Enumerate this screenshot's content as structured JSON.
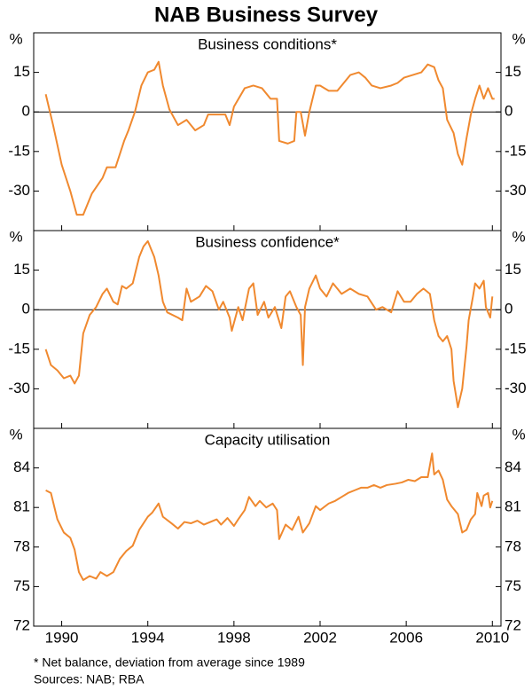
{
  "title": "NAB Business Survey",
  "notes": [
    "*      Net balance, deviation from average since 1989",
    "Sources: NAB; RBA"
  ],
  "chart_data": [
    {
      "type": "line",
      "title": "Business conditions*",
      "unit": "%",
      "xlim": [
        1988.7,
        2010.4
      ],
      "ylim": [
        -45,
        30
      ],
      "yticks": [
        -30,
        -15,
        0,
        15
      ],
      "zero_line": true,
      "x": [
        1989.26,
        1989.6,
        1990.0,
        1990.4,
        1990.7,
        1991.0,
        1991.4,
        1991.9,
        1992.1,
        1992.5,
        1992.9,
        1993.1,
        1993.4,
        1993.7,
        1994.0,
        1994.3,
        1994.5,
        1994.7,
        1995.0,
        1995.4,
        1995.8,
        1996.2,
        1996.6,
        1996.8,
        1997.2,
        1997.6,
        1997.8,
        1998.0,
        1998.5,
        1998.9,
        1999.3,
        1999.7,
        2000.0,
        2000.1,
        2000.5,
        2000.8,
        2000.9,
        2001.1,
        2001.3,
        2001.5,
        2001.8,
        2002.0,
        2002.4,
        2002.8,
        2003.0,
        2003.4,
        2003.8,
        2004.1,
        2004.4,
        2004.8,
        2005.3,
        2005.6,
        2005.9,
        2006.3,
        2006.7,
        2007.0,
        2007.3,
        2007.5,
        2007.7,
        2007.9,
        2008.2,
        2008.4,
        2008.6,
        2008.8,
        2009.0,
        2009.2,
        2009.4,
        2009.6,
        2009.8,
        2010.0,
        2010.1
      ],
      "series": [
        {
          "color": "#f0892f",
          "values": [
            6.7,
            -5,
            -20,
            -30,
            -39,
            -39,
            -31,
            -25,
            -21,
            -21,
            -11,
            -7,
            0,
            10,
            15,
            16,
            19,
            10,
            1,
            -5,
            -3,
            -7,
            -5,
            -1,
            -1,
            -1,
            -5,
            2,
            9,
            10,
            9,
            5,
            5,
            -11,
            -12,
            -11,
            0,
            0,
            -9,
            0,
            10,
            10,
            8,
            8,
            10,
            14,
            15,
            13,
            10,
            9,
            10,
            11,
            13,
            14,
            15,
            18,
            17,
            12,
            9,
            -3,
            -8,
            -16,
            -20,
            -10,
            -1,
            5,
            10,
            5,
            9,
            5,
            5
          ]
        }
      ]
    },
    {
      "type": "line",
      "title": "Business confidence*",
      "unit": "%",
      "xlim": [
        1988.7,
        2010.4
      ],
      "ylim": [
        -45,
        30
      ],
      "yticks": [
        -30,
        -15,
        0,
        15
      ],
      "zero_line": true,
      "x": [
        1989.26,
        1989.5,
        1989.8,
        1990.1,
        1990.4,
        1990.6,
        1990.8,
        1991.0,
        1991.3,
        1991.6,
        1991.9,
        1992.1,
        1992.4,
        1992.6,
        1992.8,
        1993.0,
        1993.3,
        1993.6,
        1993.8,
        1994.0,
        1994.3,
        1994.5,
        1994.7,
        1994.9,
        1995.4,
        1995.6,
        1995.8,
        1996.0,
        1996.4,
        1996.7,
        1997.0,
        1997.3,
        1997.5,
        1997.8,
        1997.9,
        1998.2,
        1998.4,
        1998.7,
        1998.9,
        1999.1,
        1999.4,
        1999.6,
        1999.9,
        2000.2,
        2000.4,
        2000.6,
        2000.9,
        2001.1,
        2001.2,
        2001.3,
        2001.5,
        2001.8,
        2002.0,
        2002.3,
        2002.6,
        2003.0,
        2003.4,
        2003.8,
        2004.2,
        2004.6,
        2004.9,
        2005.3,
        2005.6,
        2005.9,
        2006.2,
        2006.5,
        2006.8,
        2007.1,
        2007.3,
        2007.5,
        2007.7,
        2007.9,
        2008.1,
        2008.2,
        2008.4,
        2008.6,
        2008.8,
        2008.9,
        2009.1,
        2009.2,
        2009.4,
        2009.6,
        2009.7,
        2009.9,
        2010.0
      ],
      "series": [
        {
          "color": "#f0892f",
          "values": [
            -15,
            -21,
            -23,
            -26,
            -25,
            -28,
            -25,
            -9,
            -2,
            1,
            6,
            8,
            3,
            2,
            9,
            8,
            10,
            20,
            24,
            26,
            20,
            13,
            3,
            -1,
            -3,
            -4,
            8,
            3,
            5,
            9,
            7,
            0,
            3,
            -3,
            -8,
            1,
            -4,
            8,
            10,
            -2,
            3,
            -3,
            1,
            -7,
            5,
            7,
            1,
            -2,
            -21,
            1,
            8,
            13,
            8,
            5,
            10,
            6,
            8,
            6,
            5,
            0,
            1,
            -1,
            7,
            3,
            3,
            6,
            8,
            6,
            -4,
            -10,
            -12,
            -10,
            -15,
            -27,
            -37,
            -30,
            -14,
            -4,
            5,
            10,
            8,
            11,
            1,
            -3,
            5
          ]
        }
      ]
    },
    {
      "type": "line",
      "title": "Capacity utilisation",
      "unit": "%",
      "xlim": [
        1988.7,
        2010.4
      ],
      "ylim": [
        72,
        87
      ],
      "yticks": [
        72,
        75,
        78,
        81,
        84
      ],
      "zero_line": false,
      "xticks": [
        1990,
        1994,
        1998,
        2002,
        2006,
        2010
      ],
      "x": [
        1989.26,
        1989.5,
        1989.8,
        1990.1,
        1990.4,
        1990.6,
        1990.8,
        1991.0,
        1991.3,
        1991.6,
        1991.8,
        1992.1,
        1992.4,
        1992.7,
        1993.0,
        1993.3,
        1993.6,
        1994.0,
        1994.2,
        1994.5,
        1994.7,
        1995.1,
        1995.4,
        1995.7,
        1996.0,
        1996.3,
        1996.6,
        1996.9,
        1997.2,
        1997.4,
        1997.7,
        1998.0,
        1998.2,
        1998.5,
        1998.7,
        1999.0,
        1999.2,
        1999.5,
        1999.8,
        2000.0,
        2000.1,
        2000.4,
        2000.7,
        2001.0,
        2001.2,
        2001.5,
        2001.8,
        2002.0,
        2002.4,
        2002.7,
        2003.0,
        2003.3,
        2003.6,
        2003.9,
        2004.2,
        2004.5,
        2004.8,
        2005.1,
        2005.5,
        2005.8,
        2006.1,
        2006.4,
        2006.7,
        2007.0,
        2007.2,
        2007.3,
        2007.5,
        2007.7,
        2007.9,
        2008.1,
        2008.4,
        2008.6,
        2008.8,
        2009.0,
        2009.2,
        2009.3,
        2009.5,
        2009.6,
        2009.8,
        2009.9,
        2010.0
      ],
      "series": [
        {
          "color": "#f0892f",
          "values": [
            82.3,
            82.1,
            80.1,
            79.1,
            78.7,
            77.8,
            76.1,
            75.5,
            75.8,
            75.6,
            76.1,
            75.8,
            76.1,
            77.1,
            77.7,
            78.1,
            79.3,
            80.3,
            80.6,
            81.3,
            80.3,
            79.8,
            79.4,
            79.9,
            79.8,
            80.0,
            79.7,
            79.9,
            80.1,
            79.7,
            80.2,
            79.6,
            80.1,
            80.8,
            81.8,
            81.1,
            81.5,
            81.0,
            81.3,
            80.8,
            78.6,
            79.7,
            79.3,
            80.3,
            79.1,
            79.8,
            81.1,
            80.8,
            81.3,
            81.5,
            81.8,
            82.1,
            82.3,
            82.5,
            82.5,
            82.7,
            82.5,
            82.7,
            82.8,
            82.9,
            83.1,
            83.0,
            83.3,
            83.3,
            85.1,
            83.5,
            83.8,
            83.1,
            81.6,
            81.1,
            80.5,
            79.1,
            79.3,
            80.1,
            80.5,
            82.1,
            81.1,
            81.9,
            82.1,
            81.0,
            81.5
          ]
        }
      ]
    }
  ]
}
